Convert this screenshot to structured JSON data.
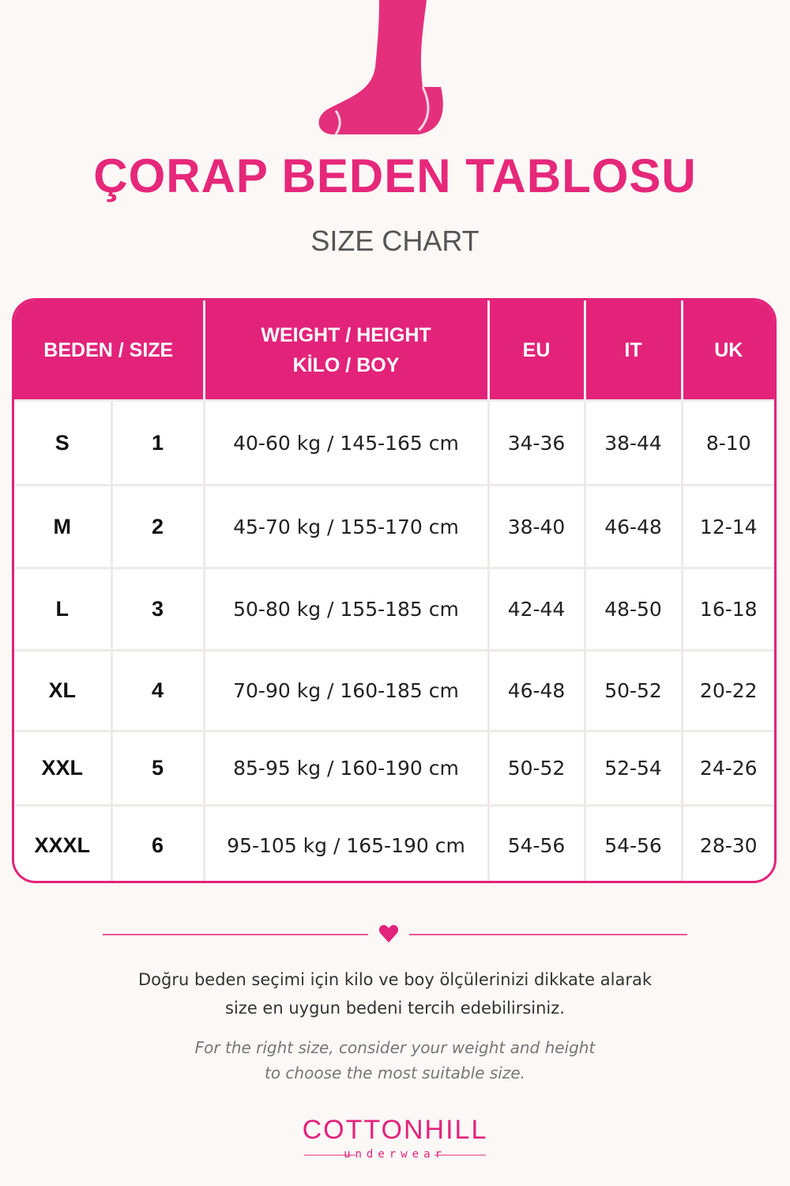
{
  "title": "ÇORAP BEDEN TABLOSU",
  "subtitle": "SIZE CHART",
  "table": {
    "header": [
      "BEDEN / SIZE",
      [
        "WEIGHT / HEIGHT",
        "KİLO / BOY"
      ],
      "EU",
      "IT",
      "UK"
    ],
    "rows": [
      [
        "S",
        "1",
        "40-60 kg / 145-165 cm",
        "34-36",
        "38-44",
        "8-10"
      ],
      [
        "M",
        "2",
        "45-70 kg / 155-170 cm",
        "38-40",
        "46-48",
        "12-14"
      ],
      [
        "L",
        "3",
        "50-80 kg / 155-185 cm",
        "42-44",
        "48-50",
        "16-18"
      ],
      [
        "XL",
        "4",
        "70-90 kg / 160-185 cm",
        "46-48",
        "50-52",
        "20-22"
      ],
      [
        "XXL",
        "5",
        "85-95 kg / 160-190 cm",
        "50-52",
        "52-54",
        "24-26"
      ],
      [
        "XXXL",
        "6",
        "95-105 kg / 165-190 cm",
        "54-56",
        "54-56",
        "28-30"
      ]
    ]
  },
  "note_tr": [
    "Doğru beden seçimi için kilo ve boy ölçülerinizi dikkate alarak",
    "size en uygun bedeni tercih edebilirsiniz."
  ],
  "note_en": [
    "For the right size, consider your weight and height",
    "to choose the most suitable size."
  ],
  "brand": {
    "name": "COTTONHILL",
    "tagline": "underwear"
  }
}
